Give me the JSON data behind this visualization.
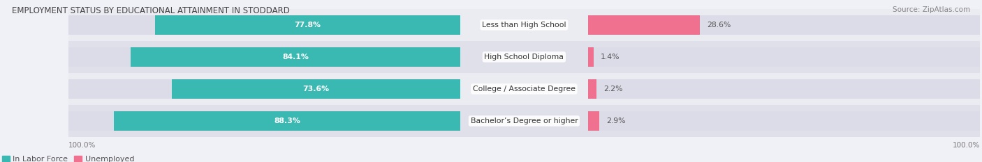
{
  "title": "EMPLOYMENT STATUS BY EDUCATIONAL ATTAINMENT IN STODDARD",
  "source": "Source: ZipAtlas.com",
  "categories": [
    "Less than High School",
    "High School Diploma",
    "College / Associate Degree",
    "Bachelor’s Degree or higher"
  ],
  "in_labor_force": [
    77.8,
    84.1,
    73.6,
    88.3
  ],
  "unemployed": [
    28.6,
    1.4,
    2.2,
    2.9
  ],
  "labor_force_color": "#3ab8b2",
  "unemployed_color": "#f07090",
  "bar_bg_color": "#dcdce8",
  "row_bg_even": "#ebebf2",
  "row_bg_odd": "#e0e0ea",
  "title_fontsize": 8.5,
  "source_fontsize": 7.5,
  "label_fontsize": 7.8,
  "cat_fontsize": 7.8,
  "tick_fontsize": 7.5,
  "legend_fontsize": 8,
  "axis_label_left": "100.0%",
  "axis_label_right": "100.0%",
  "background_color": "#f0f0f7"
}
